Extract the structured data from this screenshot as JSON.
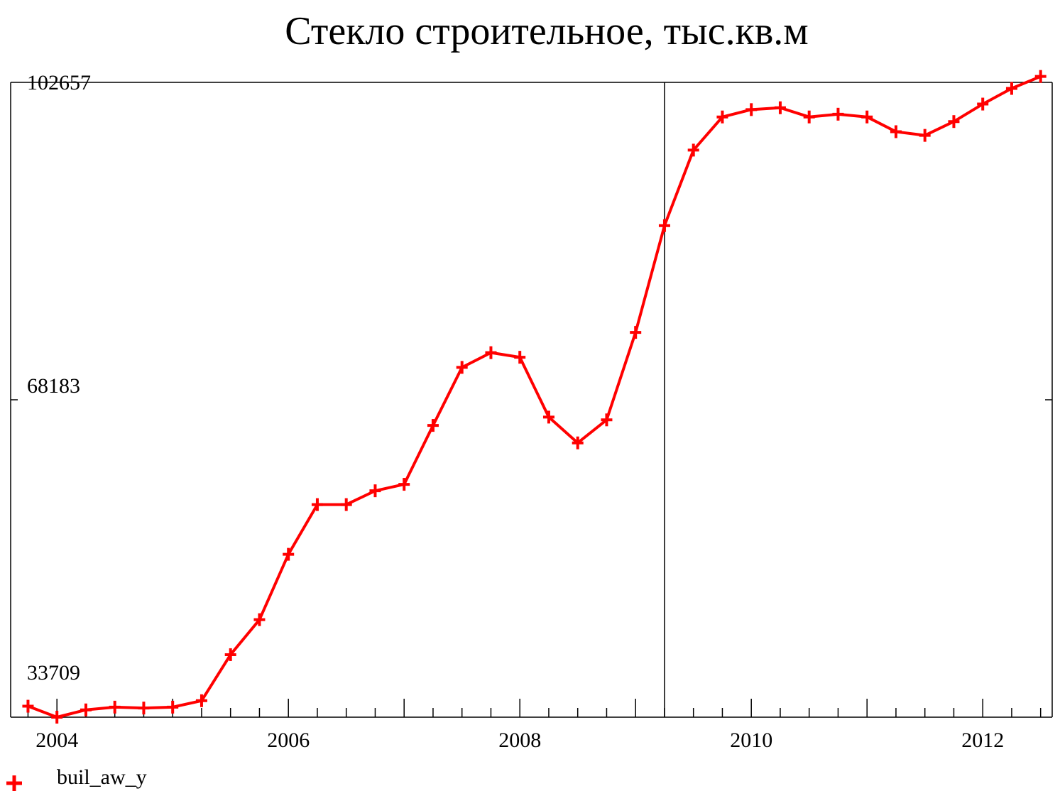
{
  "chart_data": {
    "type": "line",
    "title": "Стекло строительное, тыс.кв.м",
    "xlabel": "",
    "ylabel": "",
    "x_tick_labels": [
      "2004",
      "2006",
      "2008",
      "2010",
      "2012"
    ],
    "y_tick_labels": [
      "102657",
      "68183",
      "33709"
    ],
    "ylim": [
      33709,
      102657
    ],
    "xlim": [
      2003.6,
      2012.6
    ],
    "grid": false,
    "legend_position": "bottom-left",
    "marker": "plus",
    "color": "#ff0000",
    "vertical_marker_x": 2009.25,
    "series": [
      {
        "name": "buil_aw_y",
        "x": [
          2003.75,
          2004.0,
          2004.25,
          2004.5,
          2004.75,
          2005.0,
          2005.25,
          2005.5,
          2005.75,
          2006.0,
          2006.25,
          2006.5,
          2006.75,
          2007.0,
          2007.25,
          2007.5,
          2007.75,
          2008.0,
          2008.25,
          2008.5,
          2008.75,
          2009.0,
          2009.25,
          2009.5,
          2009.75,
          2010.0,
          2010.25,
          2010.5,
          2010.75,
          2011.0,
          2011.25,
          2011.5,
          2011.75,
          2012.0,
          2012.25,
          2012.5
        ],
        "values": [
          34900,
          33709,
          34500,
          34800,
          34700,
          34800,
          35500,
          40500,
          44300,
          51400,
          56800,
          56800,
          58300,
          59000,
          65400,
          71700,
          73300,
          72800,
          66300,
          63500,
          66000,
          75500,
          87100,
          95300,
          98900,
          99700,
          99900,
          98900,
          99200,
          98900,
          97300,
          96900,
          98400,
          100300,
          102000,
          103300
        ]
      }
    ]
  }
}
